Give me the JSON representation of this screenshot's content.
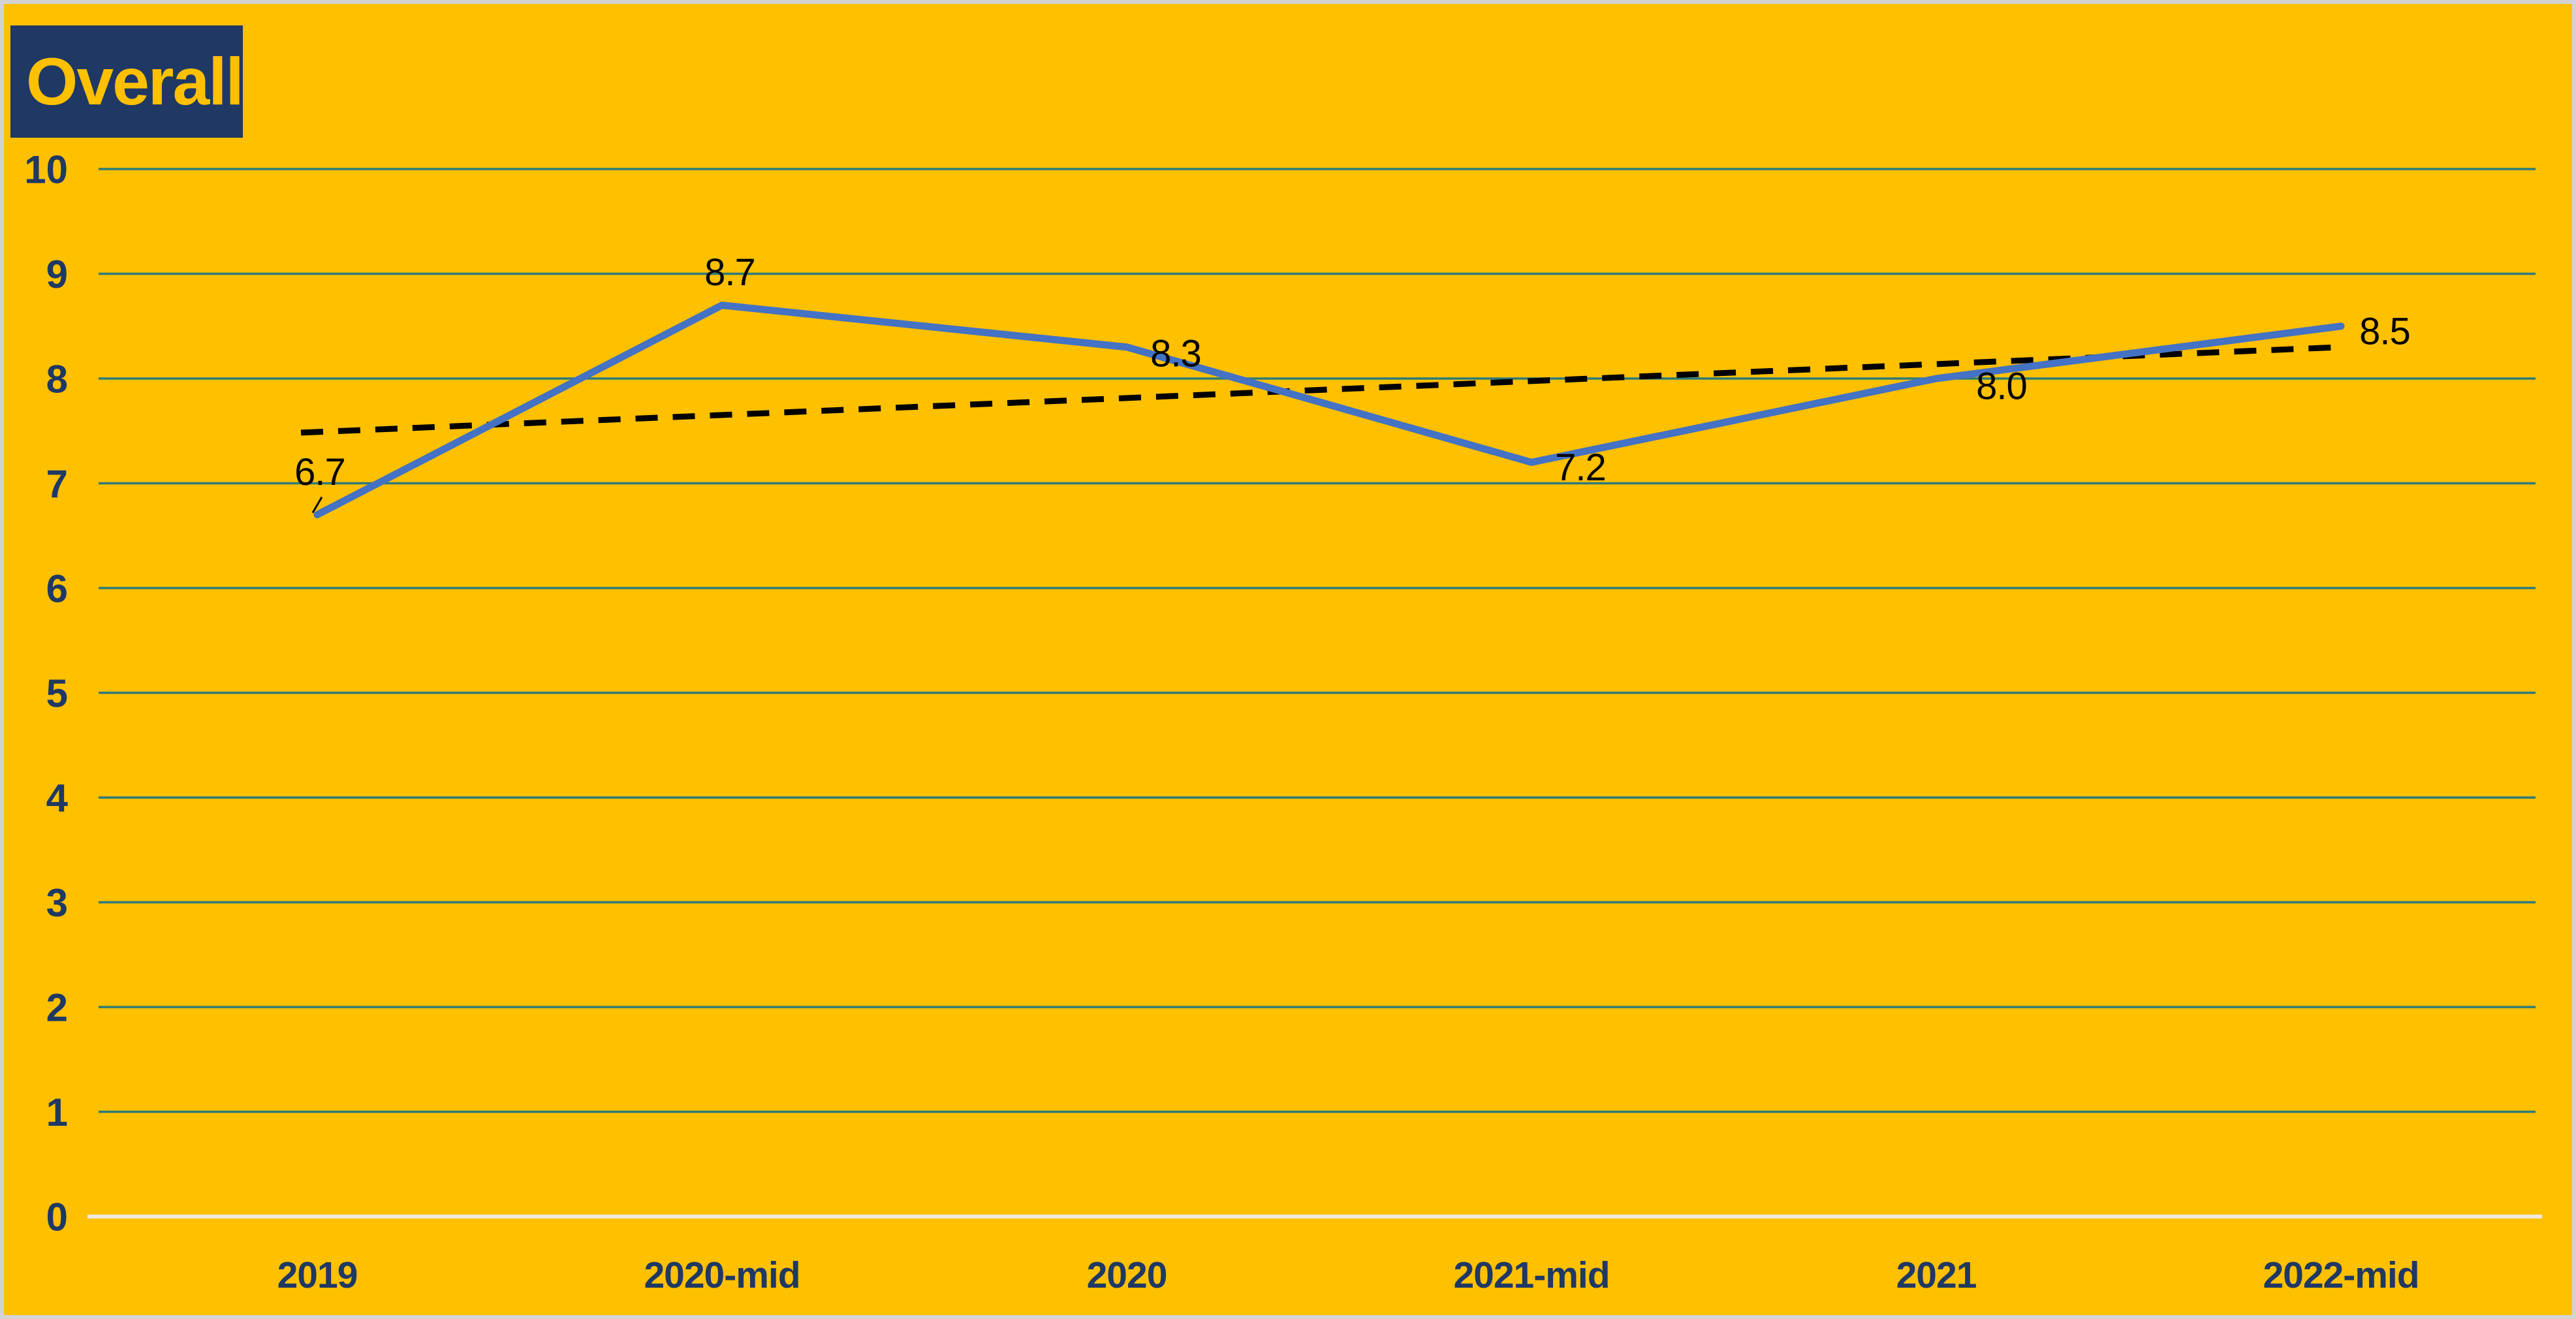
{
  "title": "Overall",
  "colors": {
    "background": "#FFC000",
    "frame_border": "#D3D3D3",
    "title_box": "#1F3864",
    "title_text": "#FFC000",
    "gridline": "#2D7B79",
    "baseline": "#F0EADC",
    "series_line": "#4472C4",
    "trendline": "#000000",
    "axis_text": "#1F3864",
    "data_label_text": "#000000"
  },
  "chart_data": {
    "type": "line",
    "title": "Overall",
    "categories": [
      "2019",
      "2020-mid",
      "2020",
      "2021-mid",
      "2021",
      "2022-mid"
    ],
    "series": [
      {
        "name": "Overall",
        "style": "solid",
        "color": "#4472C4",
        "values": [
          6.7,
          8.7,
          8.3,
          7.2,
          8.0,
          8.5
        ]
      },
      {
        "name": "linear-trendline",
        "style": "dashed",
        "color": "#000000",
        "trend_start_value": 7.49,
        "trend_end_value": 8.3
      }
    ],
    "data_labels": [
      "6.7",
      "8.7",
      "8.3",
      "7.2",
      "8.0",
      "8.5"
    ],
    "xlabel": "",
    "ylabel": "",
    "ylim": [
      0,
      10
    ],
    "yticks": [
      0,
      1,
      2,
      3,
      4,
      5,
      6,
      7,
      8,
      9,
      10
    ],
    "grid": true,
    "legend": false
  }
}
